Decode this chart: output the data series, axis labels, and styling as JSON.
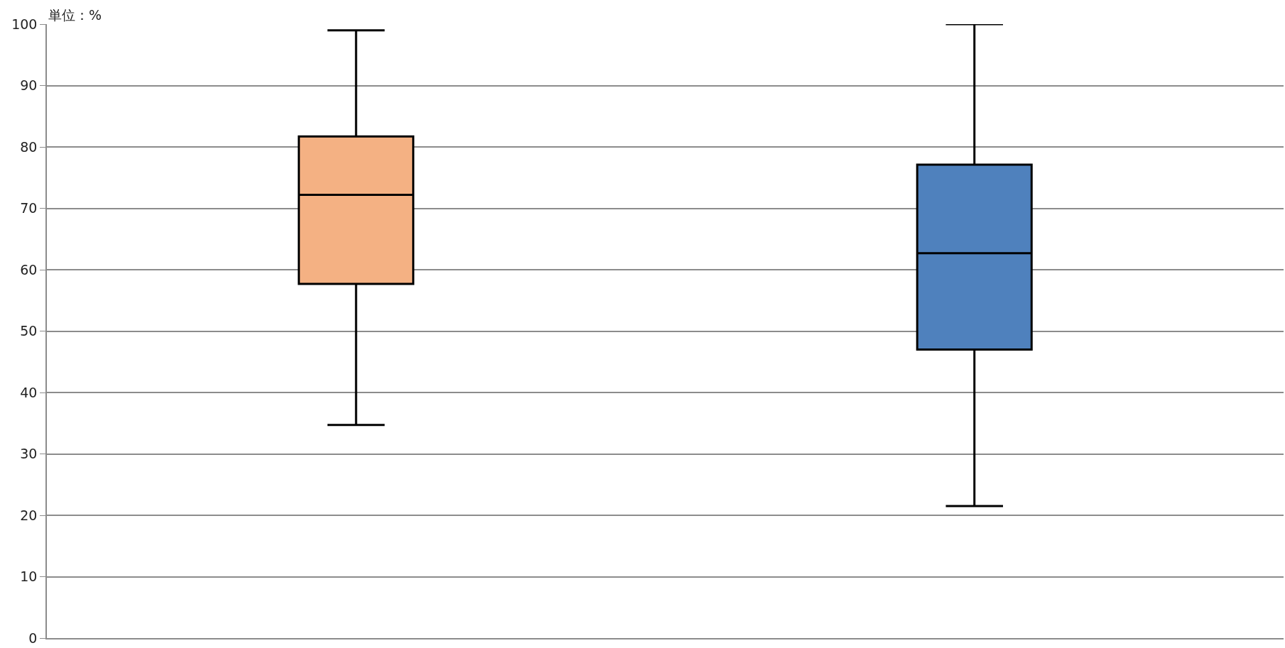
{
  "chart_data": {
    "type": "box",
    "ylabel": "単位：%",
    "categories": [
      null,
      null
    ],
    "boxes": [
      {
        "low": 34.7,
        "q1": 57.7,
        "median": 72.2,
        "q3": 81.7,
        "high": 99
      },
      {
        "low": 21.5,
        "q1": 47,
        "median": 62.7,
        "q3": 77.1,
        "high": 100
      }
    ],
    "colors": [
      "#f4b183",
      "#4f81bd"
    ],
    "ylim": [
      0,
      100
    ],
    "yticks": [
      0,
      10,
      20,
      30,
      40,
      50,
      60,
      70,
      80,
      90,
      100
    ],
    "grid": "y"
  }
}
